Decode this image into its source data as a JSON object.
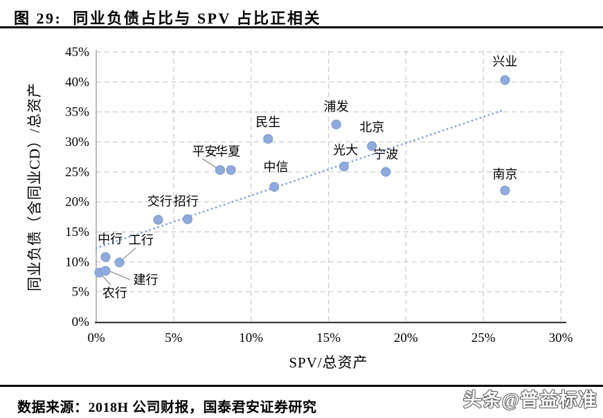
{
  "page": {
    "title": "图 29:  同业负债占比与 SPV 占比正相关",
    "source": "数据来源：2018H 公司财报，国泰君安证券研究",
    "watermark": "头条@普益标准"
  },
  "chart_data": {
    "type": "scatter",
    "title": "同业负债占比与 SPV 占比正相关",
    "xlabel": "SPV/总资产",
    "ylabel": "同业负债（含同业CD）/总资产",
    "xlim": [
      0,
      30
    ],
    "ylim": [
      0,
      45
    ],
    "x_ticks": [
      0,
      5,
      10,
      15,
      20,
      25,
      30
    ],
    "y_ticks": [
      0,
      5,
      10,
      15,
      20,
      25,
      30,
      35,
      40,
      45
    ],
    "tick_suffix": "%",
    "grid": true,
    "legend": "none",
    "colors": {
      "point": "#8faadc",
      "point_edge": "#7b99ce",
      "trend": "#85a3d6",
      "grid": "#c8c8c8",
      "axis_x": "#3d3d3d",
      "axis_y": "#a8a8a8",
      "leader": "#999999",
      "text": "#000000"
    },
    "points": [
      {
        "label": "农行",
        "x": 0.2,
        "y": 8.2,
        "label_x": 1.2,
        "label_y": 4.8,
        "leader": [
          0.35,
          7.8,
          0.95,
          6.1
        ]
      },
      {
        "label": "建行",
        "x": 0.6,
        "y": 8.5,
        "label_x": 3.2,
        "label_y": 7.0,
        "leader": [
          0.9,
          8.4,
          2.2,
          7.0
        ]
      },
      {
        "label": "中行",
        "x": 0.6,
        "y": 10.8,
        "label_x": 0.9,
        "label_y": 13.8
      },
      {
        "label": "工行",
        "x": 1.5,
        "y": 9.9,
        "label_x": 2.9,
        "label_y": 13.6,
        "leader": [
          2.55,
          12.3,
          1.75,
          10.5
        ]
      },
      {
        "label": "交行",
        "x": 4.0,
        "y": 17.0,
        "label_x": 4.1,
        "label_y": 20.1
      },
      {
        "label": "招行",
        "x": 5.9,
        "y": 17.1,
        "label_x": 5.8,
        "label_y": 20.1
      },
      {
        "label": "平安",
        "x": 8.0,
        "y": 25.3,
        "label_x": 7.0,
        "label_y": 28.4,
        "leader": [
          6.85,
          27.2,
          7.8,
          25.6
        ]
      },
      {
        "label": "华夏",
        "x": 8.7,
        "y": 25.3,
        "label_x": 8.5,
        "label_y": 28.4
      },
      {
        "label": "民生",
        "x": 11.1,
        "y": 30.5,
        "label_x": 11.1,
        "label_y": 33.3
      },
      {
        "label": "中信",
        "x": 11.5,
        "y": 22.5,
        "label_x": 11.6,
        "label_y": 25.8
      },
      {
        "label": "浦发",
        "x": 15.5,
        "y": 32.9,
        "label_x": 15.5,
        "label_y": 35.9
      },
      {
        "label": "光大",
        "x": 16.0,
        "y": 25.9,
        "label_x": 16.1,
        "label_y": 28.6
      },
      {
        "label": "北京",
        "x": 17.8,
        "y": 29.3,
        "label_x": 17.8,
        "label_y": 32.4
      },
      {
        "label": "宁波",
        "x": 18.7,
        "y": 25.0,
        "label_x": 18.7,
        "label_y": 27.9
      },
      {
        "label": "兴业",
        "x": 26.4,
        "y": 40.3,
        "label_x": 26.4,
        "label_y": 43.4
      },
      {
        "label": "南京",
        "x": 26.4,
        "y": 21.9,
        "label_x": 26.4,
        "label_y": 24.6
      }
    ],
    "trendline": {
      "x1": 0,
      "y1": 12.3,
      "x2": 26.4,
      "y2": 35.4,
      "style": "dotted"
    }
  }
}
